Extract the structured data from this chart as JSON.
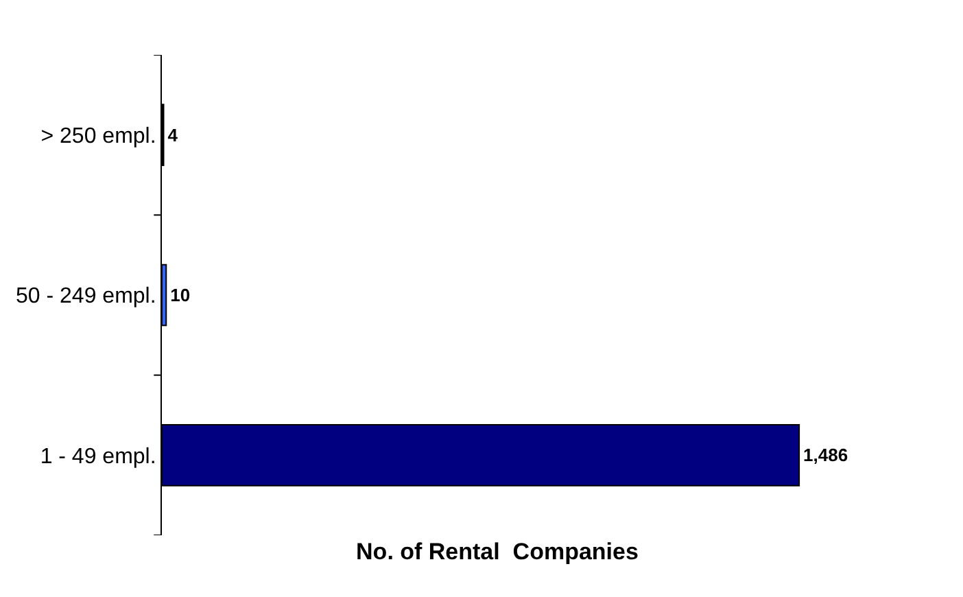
{
  "chart_data": {
    "type": "bar",
    "orientation": "horizontal",
    "xlabel": "No. of Rental  Companies",
    "categories": [
      "> 250 empl.",
      "50 - 249 empl.",
      "1 - 49 empl."
    ],
    "values": [
      4,
      10,
      1486
    ],
    "colors": [
      "#000000",
      "#3366ff",
      "#000080"
    ],
    "value_labels": [
      "4",
      "10",
      "1,486"
    ]
  }
}
